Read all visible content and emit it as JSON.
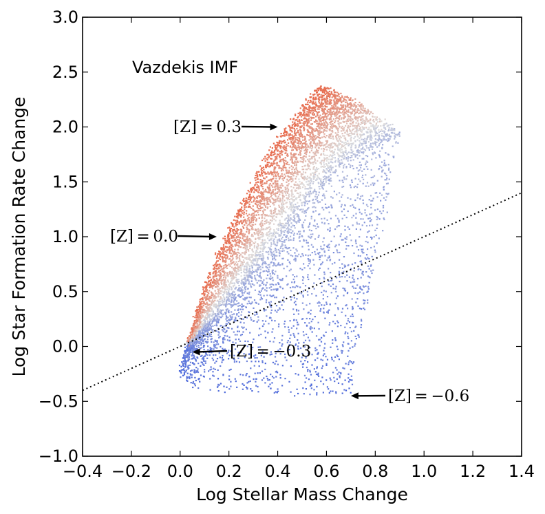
{
  "chart_data": {
    "type": "scatter",
    "title": "Vazdekis IMF",
    "xlabel": "Log Stellar Mass Change",
    "ylabel": "Log Star Formation Rate Change",
    "xlim": [
      -0.4,
      1.4
    ],
    "ylim": [
      -1.0,
      3.0
    ],
    "x_ticks": [
      -0.4,
      -0.2,
      0.0,
      0.2,
      0.4,
      0.6,
      0.8,
      1.0,
      1.2,
      1.4
    ],
    "x_tick_labels": [
      "−0.4",
      "−0.2",
      "0.0",
      "0.2",
      "0.4",
      "0.6",
      "0.8",
      "1.0",
      "1.2",
      "1.4"
    ],
    "y_ticks": [
      -1.0,
      -0.5,
      0.0,
      0.5,
      1.0,
      1.5,
      2.0,
      2.5,
      3.0
    ],
    "y_tick_labels": [
      "−1.0",
      "−0.5",
      "0.0",
      "0.5",
      "1.0",
      "1.5",
      "2.0",
      "2.5",
      "3.0"
    ],
    "grid": false,
    "colormap": {
      "low": "#3b5bdb",
      "mid": "#dddddd",
      "high": "#e8694a"
    },
    "reference_line": {
      "style": "dotted",
      "points": [
        [
          -0.4,
          -0.4
        ],
        [
          1.4,
          1.4
        ]
      ]
    },
    "metallicity_tracks": [
      {
        "Z": 0.3,
        "label": "[Z] = 0.3",
        "path": [
          [
            0.03,
            0.03
          ],
          [
            0.08,
            0.45
          ],
          [
            0.14,
            0.8
          ],
          [
            0.2,
            1.1
          ],
          [
            0.27,
            1.4
          ],
          [
            0.34,
            1.7
          ],
          [
            0.41,
            1.95
          ],
          [
            0.48,
            2.15
          ],
          [
            0.54,
            2.32
          ],
          [
            0.58,
            2.38
          ]
        ]
      },
      {
        "Z": 0.0,
        "label": "[Z] = 0.0",
        "path": [
          [
            0.03,
            0.02
          ],
          [
            0.1,
            0.35
          ],
          [
            0.18,
            0.65
          ],
          [
            0.26,
            0.95
          ],
          [
            0.34,
            1.25
          ],
          [
            0.42,
            1.5
          ],
          [
            0.5,
            1.75
          ],
          [
            0.58,
            1.95
          ],
          [
            0.66,
            2.1
          ],
          [
            0.75,
            2.2
          ]
        ]
      },
      {
        "Z": -0.3,
        "label": "[Z] = −0.3",
        "path": [
          [
            0.03,
            0.02
          ],
          [
            0.12,
            0.25
          ],
          [
            0.22,
            0.5
          ],
          [
            0.32,
            0.75
          ],
          [
            0.42,
            1.0
          ],
          [
            0.5,
            1.25
          ],
          [
            0.6,
            1.5
          ],
          [
            0.7,
            1.7
          ],
          [
            0.8,
            1.85
          ],
          [
            0.9,
            1.95
          ]
        ]
      },
      {
        "Z": -0.6,
        "label": "[Z] = −0.6",
        "path": [
          [
            0.03,
            0.02
          ],
          [
            0.0,
            -0.15
          ],
          [
            0.0,
            -0.28
          ],
          [
            0.05,
            -0.36
          ],
          [
            0.15,
            -0.4
          ],
          [
            0.3,
            -0.42
          ],
          [
            0.45,
            -0.43
          ],
          [
            0.6,
            -0.43
          ],
          [
            0.69,
            -0.43
          ]
        ]
      }
    ],
    "annotations": [
      {
        "text": "[Z] = 0.3",
        "arrow_tip": [
          0.4,
          2.0
        ]
      },
      {
        "text": "[Z] = 0.0",
        "arrow_tip": [
          0.15,
          1.0
        ]
      },
      {
        "text": "[Z] = −0.3",
        "arrow_tip": [
          0.05,
          -0.05
        ]
      },
      {
        "text": "[Z] = −0.6",
        "arrow_tip": [
          0.7,
          -0.45
        ]
      }
    ]
  }
}
